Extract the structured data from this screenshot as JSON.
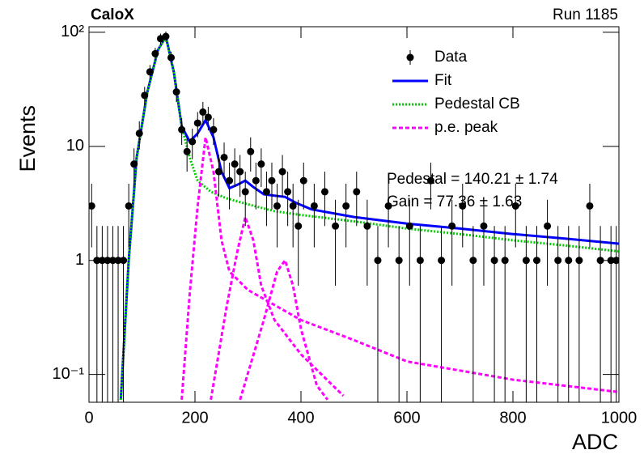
{
  "chart_data": {
    "type": "scatter",
    "title": "CaloX",
    "subtitle": "Run 1185",
    "xlabel": "ADC",
    "ylabel": "Events",
    "log_y": true,
    "legend": "upper right",
    "annotations": [
      "Pedestal = 140.21 ± 1.74",
      "Gain = 77.36 ± 1.63"
    ],
    "xlim": [
      0,
      1000
    ],
    "ylim": [
      0.057,
      112
    ],
    "xticks": [
      0,
      200,
      400,
      600,
      800,
      1000
    ],
    "yticks": [
      {
        "value": 0.1,
        "label": "10⁻¹"
      },
      1,
      10,
      {
        "value": 100,
        "label": "10²"
      }
    ],
    "data": {
      "name": "Data",
      "color": "#000000",
      "x": [
        5,
        15,
        25,
        35,
        45,
        55,
        65,
        75,
        85,
        95,
        105,
        115,
        125,
        135,
        145,
        155,
        165,
        175,
        185,
        195,
        205,
        215,
        225,
        235,
        245,
        255,
        265,
        275,
        285,
        295,
        305,
        315,
        325,
        335,
        345,
        355,
        365,
        375,
        385,
        395,
        405,
        425,
        445,
        465,
        485,
        505,
        525,
        545,
        565,
        585,
        605,
        625,
        645,
        665,
        685,
        705,
        725,
        745,
        765,
        785,
        805,
        825,
        845,
        865,
        885,
        905,
        925,
        945,
        965,
        985,
        995
      ],
      "values": [
        3,
        1,
        1,
        1,
        1,
        1,
        1,
        3,
        7,
        13,
        28,
        45,
        65,
        88,
        92,
        60,
        30,
        14,
        9,
        11,
        16,
        20,
        18,
        14,
        6,
        8,
        5,
        7,
        6,
        4,
        9,
        5,
        7,
        4,
        5,
        3,
        6,
        4,
        3,
        2,
        5,
        3,
        4,
        2,
        3,
        4,
        2,
        1,
        3,
        1,
        2,
        1,
        5,
        1,
        2,
        3,
        1,
        2,
        1,
        1,
        3,
        1,
        1,
        2,
        1,
        1,
        1,
        3,
        1,
        1,
        1
      ],
      "errors": [
        1.7,
        1,
        1,
        1,
        1,
        1,
        1,
        1.7,
        2.6,
        3.6,
        5.3,
        6.7,
        8.1,
        9.4,
        9.6,
        7.7,
        5.5,
        3.7,
        3,
        3.3,
        4,
        4.5,
        4.2,
        3.7,
        2.4,
        2.8,
        2.2,
        2.6,
        2.4,
        2,
        3,
        2.2,
        2.6,
        2,
        2.2,
        1.7,
        2.4,
        2,
        1.7,
        1.4,
        2.2,
        1.7,
        2,
        1.4,
        1.7,
        2,
        1.4,
        1,
        1.7,
        1,
        1.4,
        1,
        2.2,
        1,
        1.4,
        1.7,
        1,
        1.4,
        1,
        1,
        1.7,
        1,
        1,
        1.4,
        1,
        1,
        1,
        1.7,
        1,
        1,
        1
      ]
    },
    "series": [
      {
        "name": "Fit",
        "color": "#0000ff",
        "style": "solid",
        "x": [
          60,
          75,
          90,
          110,
          130,
          145,
          160,
          175,
          190,
          205,
          220,
          235,
          250,
          265,
          280,
          295,
          310,
          330,
          350,
          370,
          390,
          420,
          500,
          600,
          700,
          800,
          900,
          1000
        ],
        "values": [
          0.06,
          1,
          8,
          30,
          70,
          92,
          45,
          15,
          11,
          13,
          17,
          12,
          6,
          4.3,
          4.6,
          5,
          4.4,
          3.8,
          3.7,
          3.6,
          3.2,
          2.8,
          2.4,
          2.1,
          1.9,
          1.7,
          1.55,
          1.4
        ]
      },
      {
        "name": "Pedestal CB",
        "color": "#00cc00",
        "style": "dotted",
        "x": [
          60,
          75,
          90,
          110,
          130,
          145,
          160,
          175,
          190,
          205,
          230,
          260,
          300,
          350,
          400,
          500,
          600,
          700,
          800,
          900,
          1000
        ],
        "values": [
          0.06,
          1,
          8,
          30,
          70,
          92,
          45,
          15,
          8,
          5,
          4,
          3.5,
          3.1,
          2.7,
          2.5,
          2.2,
          1.9,
          1.7,
          1.5,
          1.35,
          1.2
        ]
      },
      {
        "name": "p.e. peak",
        "color": "#ff00ff",
        "style": "dashed",
        "x": [
          175,
          190,
          205,
          220,
          235,
          250,
          265,
          300,
          400,
          500,
          600,
          800,
          1000,
          null,
          230,
          260,
          280,
          295,
          310,
          325,
          350,
          400,
          480,
          null,
          285,
          330,
          355,
          370,
          385,
          400,
          430,
          450
        ],
        "values": [
          0.06,
          0.5,
          3,
          12,
          6,
          1.5,
          0.8,
          0.55,
          0.3,
          0.2,
          0.13,
          0.09,
          0.07,
          null,
          0.06,
          0.4,
          1.2,
          2.4,
          1.5,
          0.6,
          0.3,
          0.15,
          0.065,
          null,
          0.06,
          0.3,
          0.8,
          1,
          0.6,
          0.25,
          0.08,
          0.06
        ]
      }
    ]
  }
}
